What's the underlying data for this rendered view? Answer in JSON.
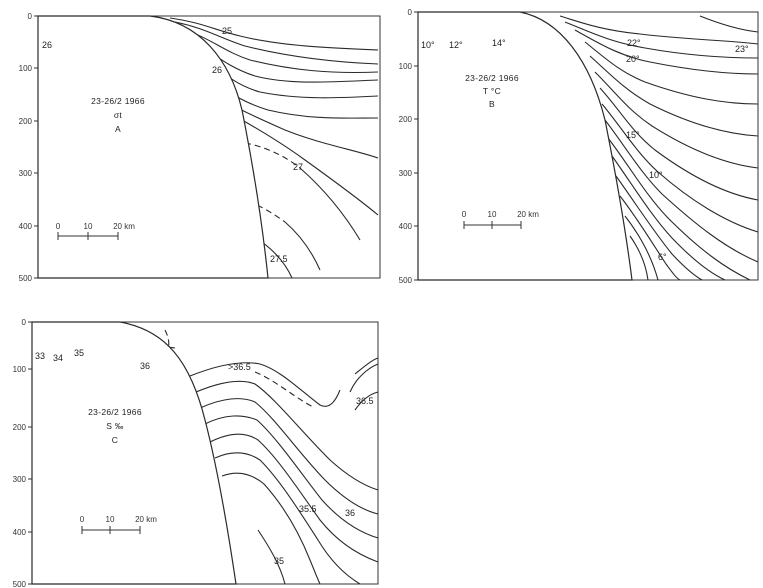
{
  "panels": [
    {
      "id": "A",
      "date": "23-26/2 1966",
      "variable": "σt",
      "letter": "A",
      "scale": {
        "ticks": [
          "0",
          "10",
          "20 km"
        ]
      },
      "depth_ticks": [
        "0",
        "100",
        "200",
        "300",
        "400",
        "500"
      ],
      "contour_labels": [
        "26",
        "25",
        "26",
        "27",
        "27.5"
      ]
    },
    {
      "id": "B",
      "date": "23-26/2 1966",
      "variable": "T °C",
      "letter": "B",
      "scale": {
        "ticks": [
          "0",
          "10",
          "20 km"
        ]
      },
      "depth_ticks": [
        "0",
        "100",
        "200",
        "300",
        "400",
        "500"
      ],
      "contour_labels": [
        "10°",
        "12°",
        "14°",
        "22°",
        "23°",
        "20°",
        "15°",
        "10°",
        "6°"
      ]
    },
    {
      "id": "C",
      "date": "23-26/2 1966",
      "variable": "S ‰",
      "letter": "C",
      "scale": {
        "ticks": [
          "0",
          "10",
          "20 km"
        ]
      },
      "depth_ticks": [
        "0",
        "100",
        "200",
        "300",
        "400",
        "500"
      ],
      "contour_labels": [
        "33",
        "34",
        "35",
        "36",
        ">36.5",
        "36.5",
        "35.5",
        "36",
        "35"
      ]
    }
  ]
}
